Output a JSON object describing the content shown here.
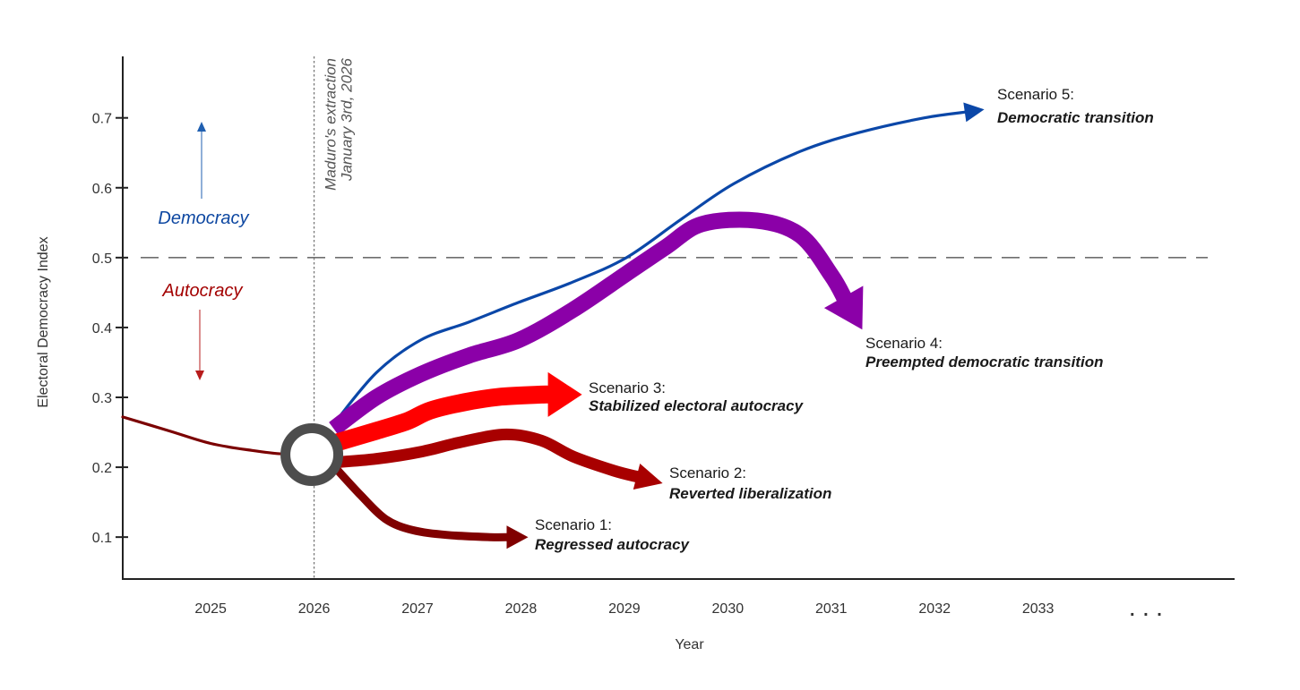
{
  "chart_data": {
    "type": "line",
    "title": "",
    "xlabel": "Year",
    "ylabel": "Electoral Democracy Index",
    "xlim": [
      2024.15,
      2034.9
    ],
    "ylim": [
      0.04,
      0.788
    ],
    "x_ticks": [
      2025,
      2026,
      2027,
      2028,
      2029,
      2030,
      2031,
      2032,
      2033
    ],
    "x_tick_labels": [
      "2025",
      "2026",
      "2027",
      "2028",
      "2029",
      "2030",
      "2031",
      "2032",
      "2033"
    ],
    "x_continuation_label": ". . .",
    "y_ticks": [
      0.1,
      0.2,
      0.3,
      0.4,
      0.5,
      0.6,
      0.7
    ],
    "y_tick_labels": [
      "0.1",
      "0.2",
      "0.3",
      "0.4",
      "0.5",
      "0.6",
      "0.7"
    ],
    "grid": false,
    "threshold": {
      "value": 0.5,
      "style": "dashed",
      "color": "#6e6e6e"
    },
    "event": {
      "x": 2026.0,
      "style": "dotted",
      "label_lines": [
        "Maduro's extraction",
        "January 3rd, 2026"
      ],
      "marker_value": 0.22,
      "marker_color": "#4d4d4d"
    },
    "regime_labels": {
      "democracy": {
        "text": "Democracy",
        "color": "#0d47a1",
        "arrow_color": "#1f5fb0",
        "direction": "up"
      },
      "autocracy": {
        "text": "Autocracy",
        "color": "#a30000",
        "arrow_color": "#b71c1c",
        "direction": "down"
      }
    },
    "history": {
      "name": "Historical",
      "color": "#7b0000",
      "x": [
        2024.15,
        2024.6,
        2025.0,
        2025.4,
        2025.7,
        2025.97
      ],
      "y": [
        0.272,
        0.252,
        0.234,
        0.224,
        0.219,
        0.22
      ]
    },
    "series": [
      {
        "name": "Scenario 1",
        "label_number": "Scenario 1:",
        "label_name": "Regressed autocracy",
        "color": "#800000",
        "weight": 3,
        "x": [
          2026.17,
          2026.45,
          2026.69,
          2026.95,
          2027.29,
          2027.7,
          2028.07
        ],
        "y": [
          0.205,
          0.16,
          0.126,
          0.11,
          0.103,
          0.1,
          0.1
        ]
      },
      {
        "name": "Scenario 2",
        "label_number": "Scenario 2:",
        "label_name": "Reverted liberalization",
        "color": "#a80000",
        "weight": 4,
        "x": [
          2026.2,
          2026.6,
          2027.03,
          2027.45,
          2027.86,
          2028.2,
          2028.51,
          2028.9,
          2029.37
        ],
        "y": [
          0.207,
          0.212,
          0.222,
          0.237,
          0.247,
          0.238,
          0.215,
          0.195,
          0.177
        ]
      },
      {
        "name": "Scenario 3",
        "label_number": "Scenario 3:",
        "label_name": "Stabilized electoral autocracy",
        "color": "#ff0000",
        "weight": 5,
        "x": [
          2026.21,
          2026.6,
          2026.9,
          2027.12,
          2027.45,
          2027.81,
          2028.2,
          2028.59
        ],
        "y": [
          0.235,
          0.252,
          0.266,
          0.281,
          0.293,
          0.301,
          0.304,
          0.304
        ]
      },
      {
        "name": "Scenario 4",
        "label_number": "Scenario 4:",
        "label_name": "Preempted democratic transition",
        "color": "#8b00a8",
        "weight": 4.6,
        "x": [
          2026.19,
          2026.6,
          2027.03,
          2027.5,
          2027.98,
          2028.5,
          2029.02,
          2029.4,
          2029.75,
          2030.28,
          2030.7,
          2031.0,
          2031.3
        ],
        "y": [
          0.255,
          0.3,
          0.333,
          0.36,
          0.382,
          0.425,
          0.477,
          0.515,
          0.548,
          0.553,
          0.532,
          0.475,
          0.397
        ]
      },
      {
        "name": "Scenario 5",
        "label_number": "Scenario 5:",
        "label_name": "Democratic transition",
        "color": "#0b47a8",
        "weight": 1,
        "x": [
          2026.19,
          2026.6,
          2027.03,
          2027.5,
          2027.98,
          2028.5,
          2029.02,
          2029.55,
          2030.06,
          2030.7,
          2031.27,
          2031.9,
          2032.48
        ],
        "y": [
          0.262,
          0.335,
          0.382,
          0.408,
          0.436,
          0.465,
          0.5,
          0.555,
          0.606,
          0.652,
          0.679,
          0.7,
          0.712
        ]
      }
    ]
  }
}
